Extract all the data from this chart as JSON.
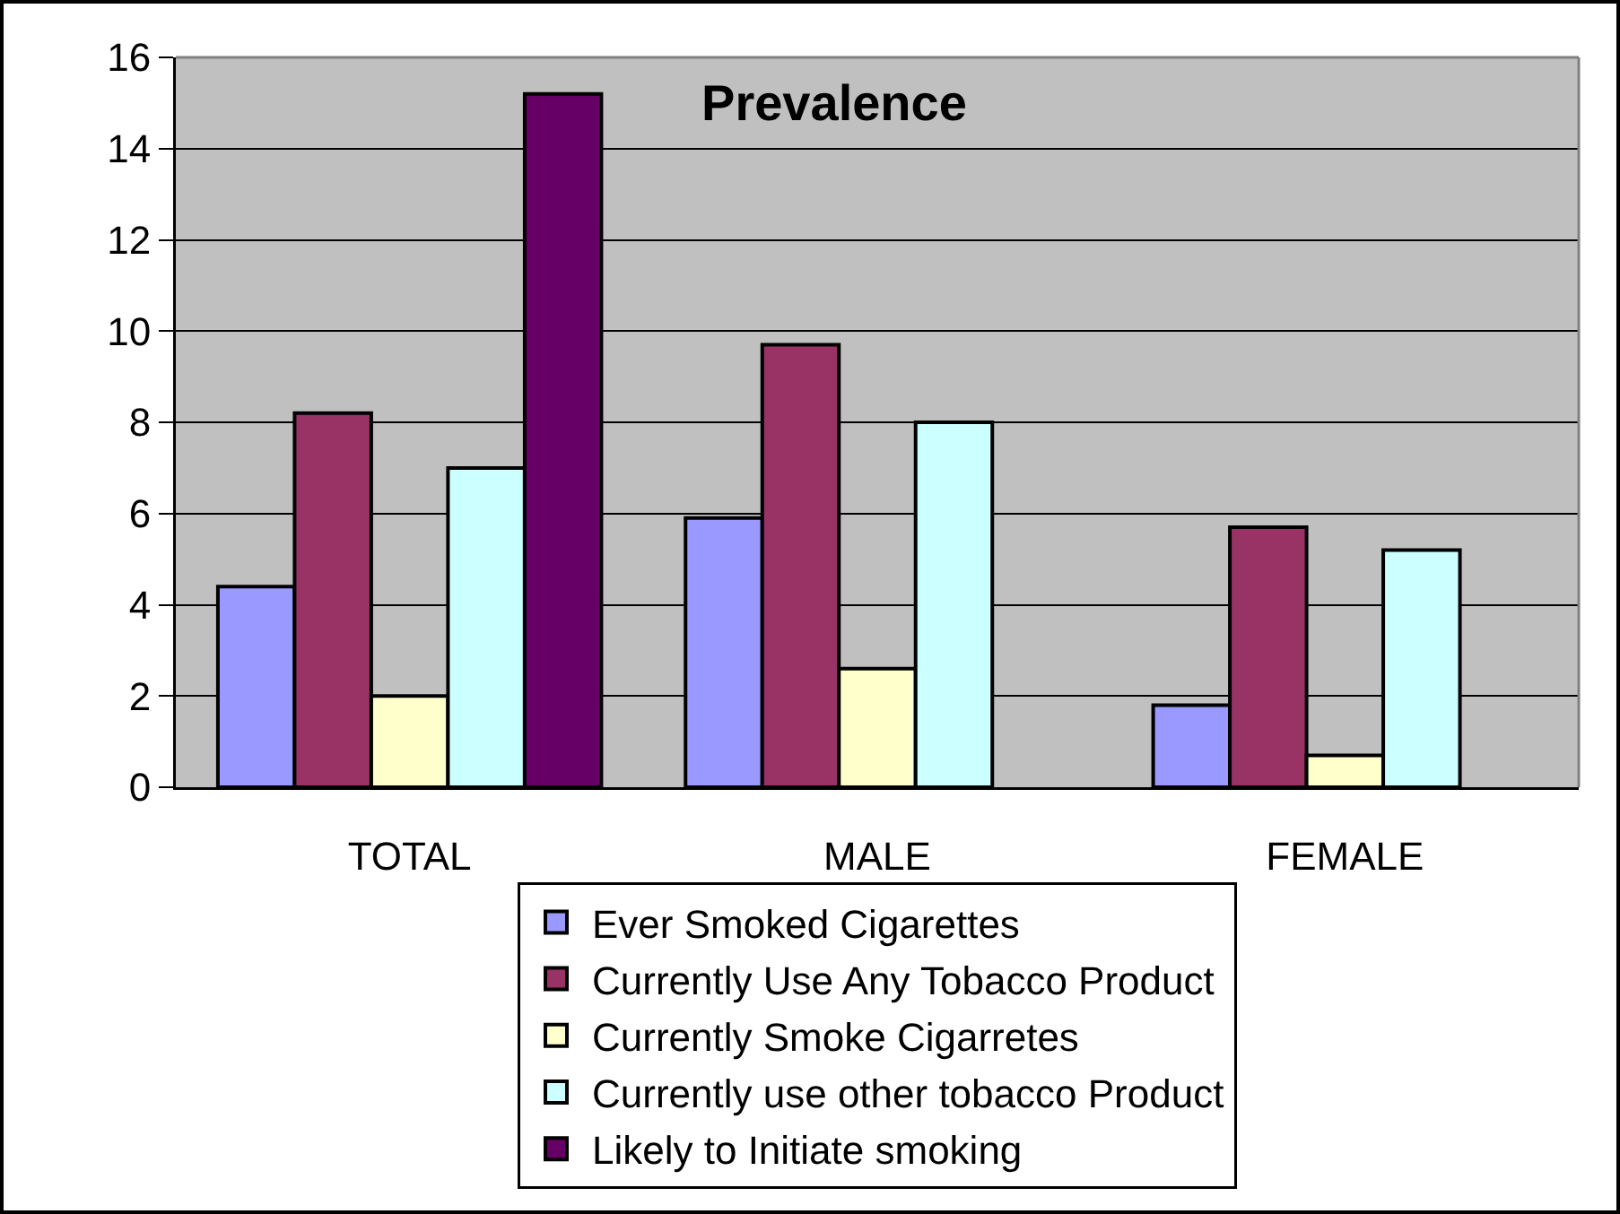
{
  "chart_data": {
    "type": "bar",
    "title": "Prevalence",
    "categories": [
      "TOTAL",
      "MALE",
      "FEMALE"
    ],
    "series": [
      {
        "name": "Ever Smoked Cigarettes",
        "color": "#9999ff",
        "values": [
          4.4,
          5.9,
          1.8
        ]
      },
      {
        "name": "Currently Use Any Tobacco Product",
        "color": "#993366",
        "values": [
          8.2,
          9.7,
          5.7
        ]
      },
      {
        "name": "Currently Smoke Cigarretes",
        "color": "#ffffcc",
        "values": [
          2.0,
          2.6,
          0.7
        ]
      },
      {
        "name": "Currently use other tobacco Product",
        "color": "#ccffff",
        "values": [
          7.0,
          8.0,
          5.2
        ]
      },
      {
        "name": "Likely to Initiate smoking",
        "color": "#660066",
        "values": [
          15.2,
          null,
          null
        ]
      }
    ],
    "ylim": [
      0,
      16
    ],
    "yticks": [
      0,
      2,
      4,
      6,
      8,
      10,
      12,
      14,
      16
    ],
    "grid": "y",
    "legend": "bottom"
  }
}
